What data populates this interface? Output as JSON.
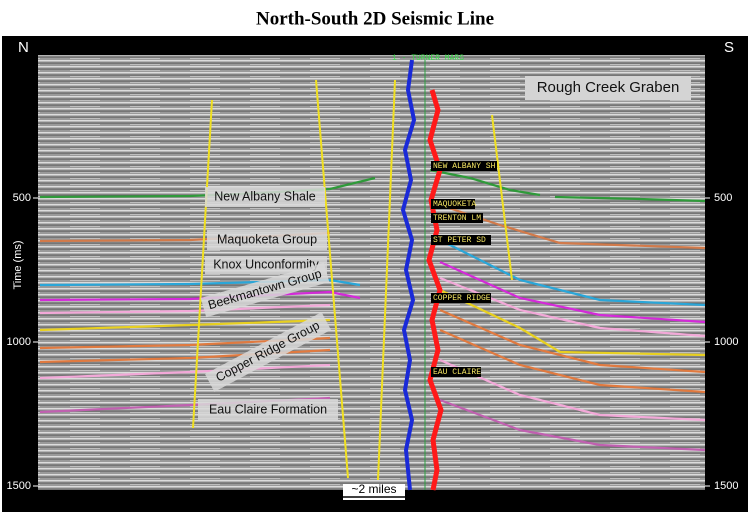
{
  "title": "North-South 2D Seismic Line",
  "directions": {
    "left": "N",
    "right": "S"
  },
  "axis": {
    "label": "Time (ms)",
    "ylim": [
      0,
      1500
    ],
    "ticks": [
      500,
      1000,
      1500
    ]
  },
  "region_label": "Rough Creek Graben",
  "formations": [
    "New Albany Shale",
    "Maquoketa Group",
    "Knox Unconformity",
    "Beekmantown Group",
    "Copper Ridge Group",
    "Eau Claire Formation"
  ],
  "well": {
    "name": "1 - TURNER MARS",
    "tops": [
      "NEW ALBANY SH",
      "MAQUOKETA",
      "TRENTON LM",
      "ST PETER SD",
      "COPPER RIDGE",
      "EAU CLAIRE"
    ]
  },
  "scale_bar": "~2 miles"
}
